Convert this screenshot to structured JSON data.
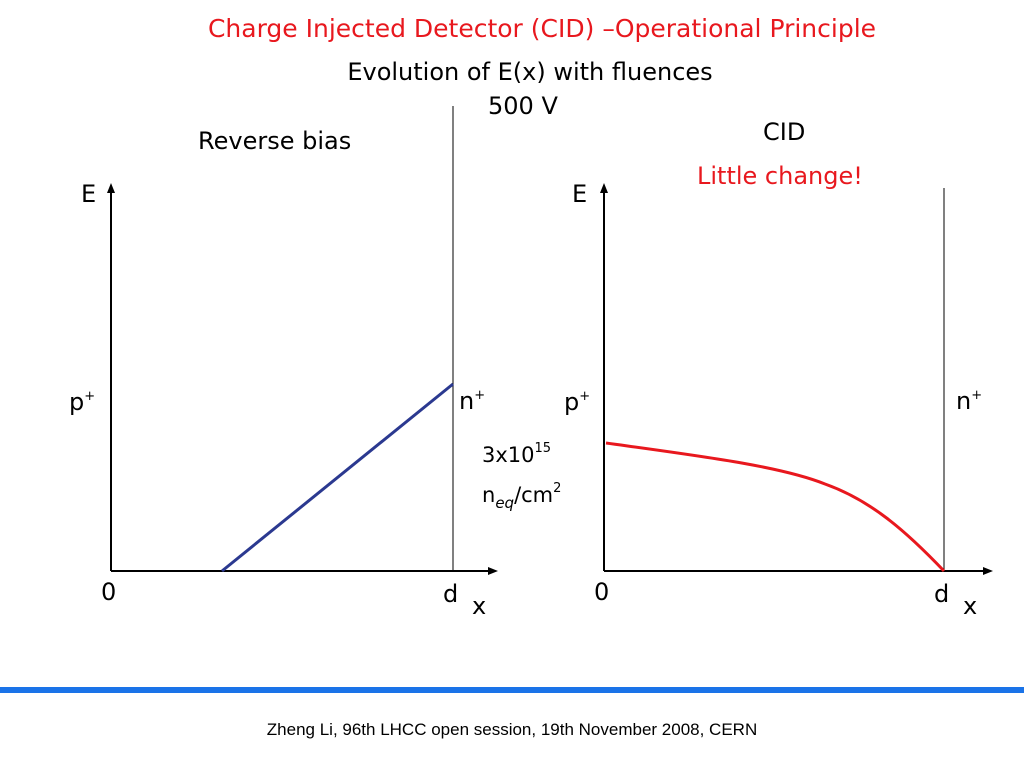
{
  "slide": {
    "title": "Charge Injected Detector (CID) –Operational Principle",
    "subtitle": "Evolution of E(x) with fluences",
    "voltage": "500 V"
  },
  "left_panel": {
    "caption": "Reverse bias",
    "y_label": "E",
    "x_label": "x",
    "origin_label": "0",
    "thickness_label": "d",
    "p_side": "p",
    "n_side": "n",
    "plus": "+",
    "line_color": "#2b3990"
  },
  "right_panel": {
    "caption": "CID",
    "note": "Little change!",
    "y_label": "E",
    "x_label": "x",
    "origin_label": "0",
    "thickness_label": "d",
    "p_side": "p",
    "n_side": "n",
    "plus": "+",
    "line_color": "#e8181e"
  },
  "fluence": {
    "mantissa": "3x10",
    "exponent": "15",
    "unit_n": "n",
    "unit_sub": "eq",
    "unit_rest": "/cm",
    "unit_exp": "2"
  },
  "footer": {
    "text": "Zheng Li, 96th LHCC open session, 19th November 2008, CERN",
    "bar_color": "#1a73e8"
  }
}
